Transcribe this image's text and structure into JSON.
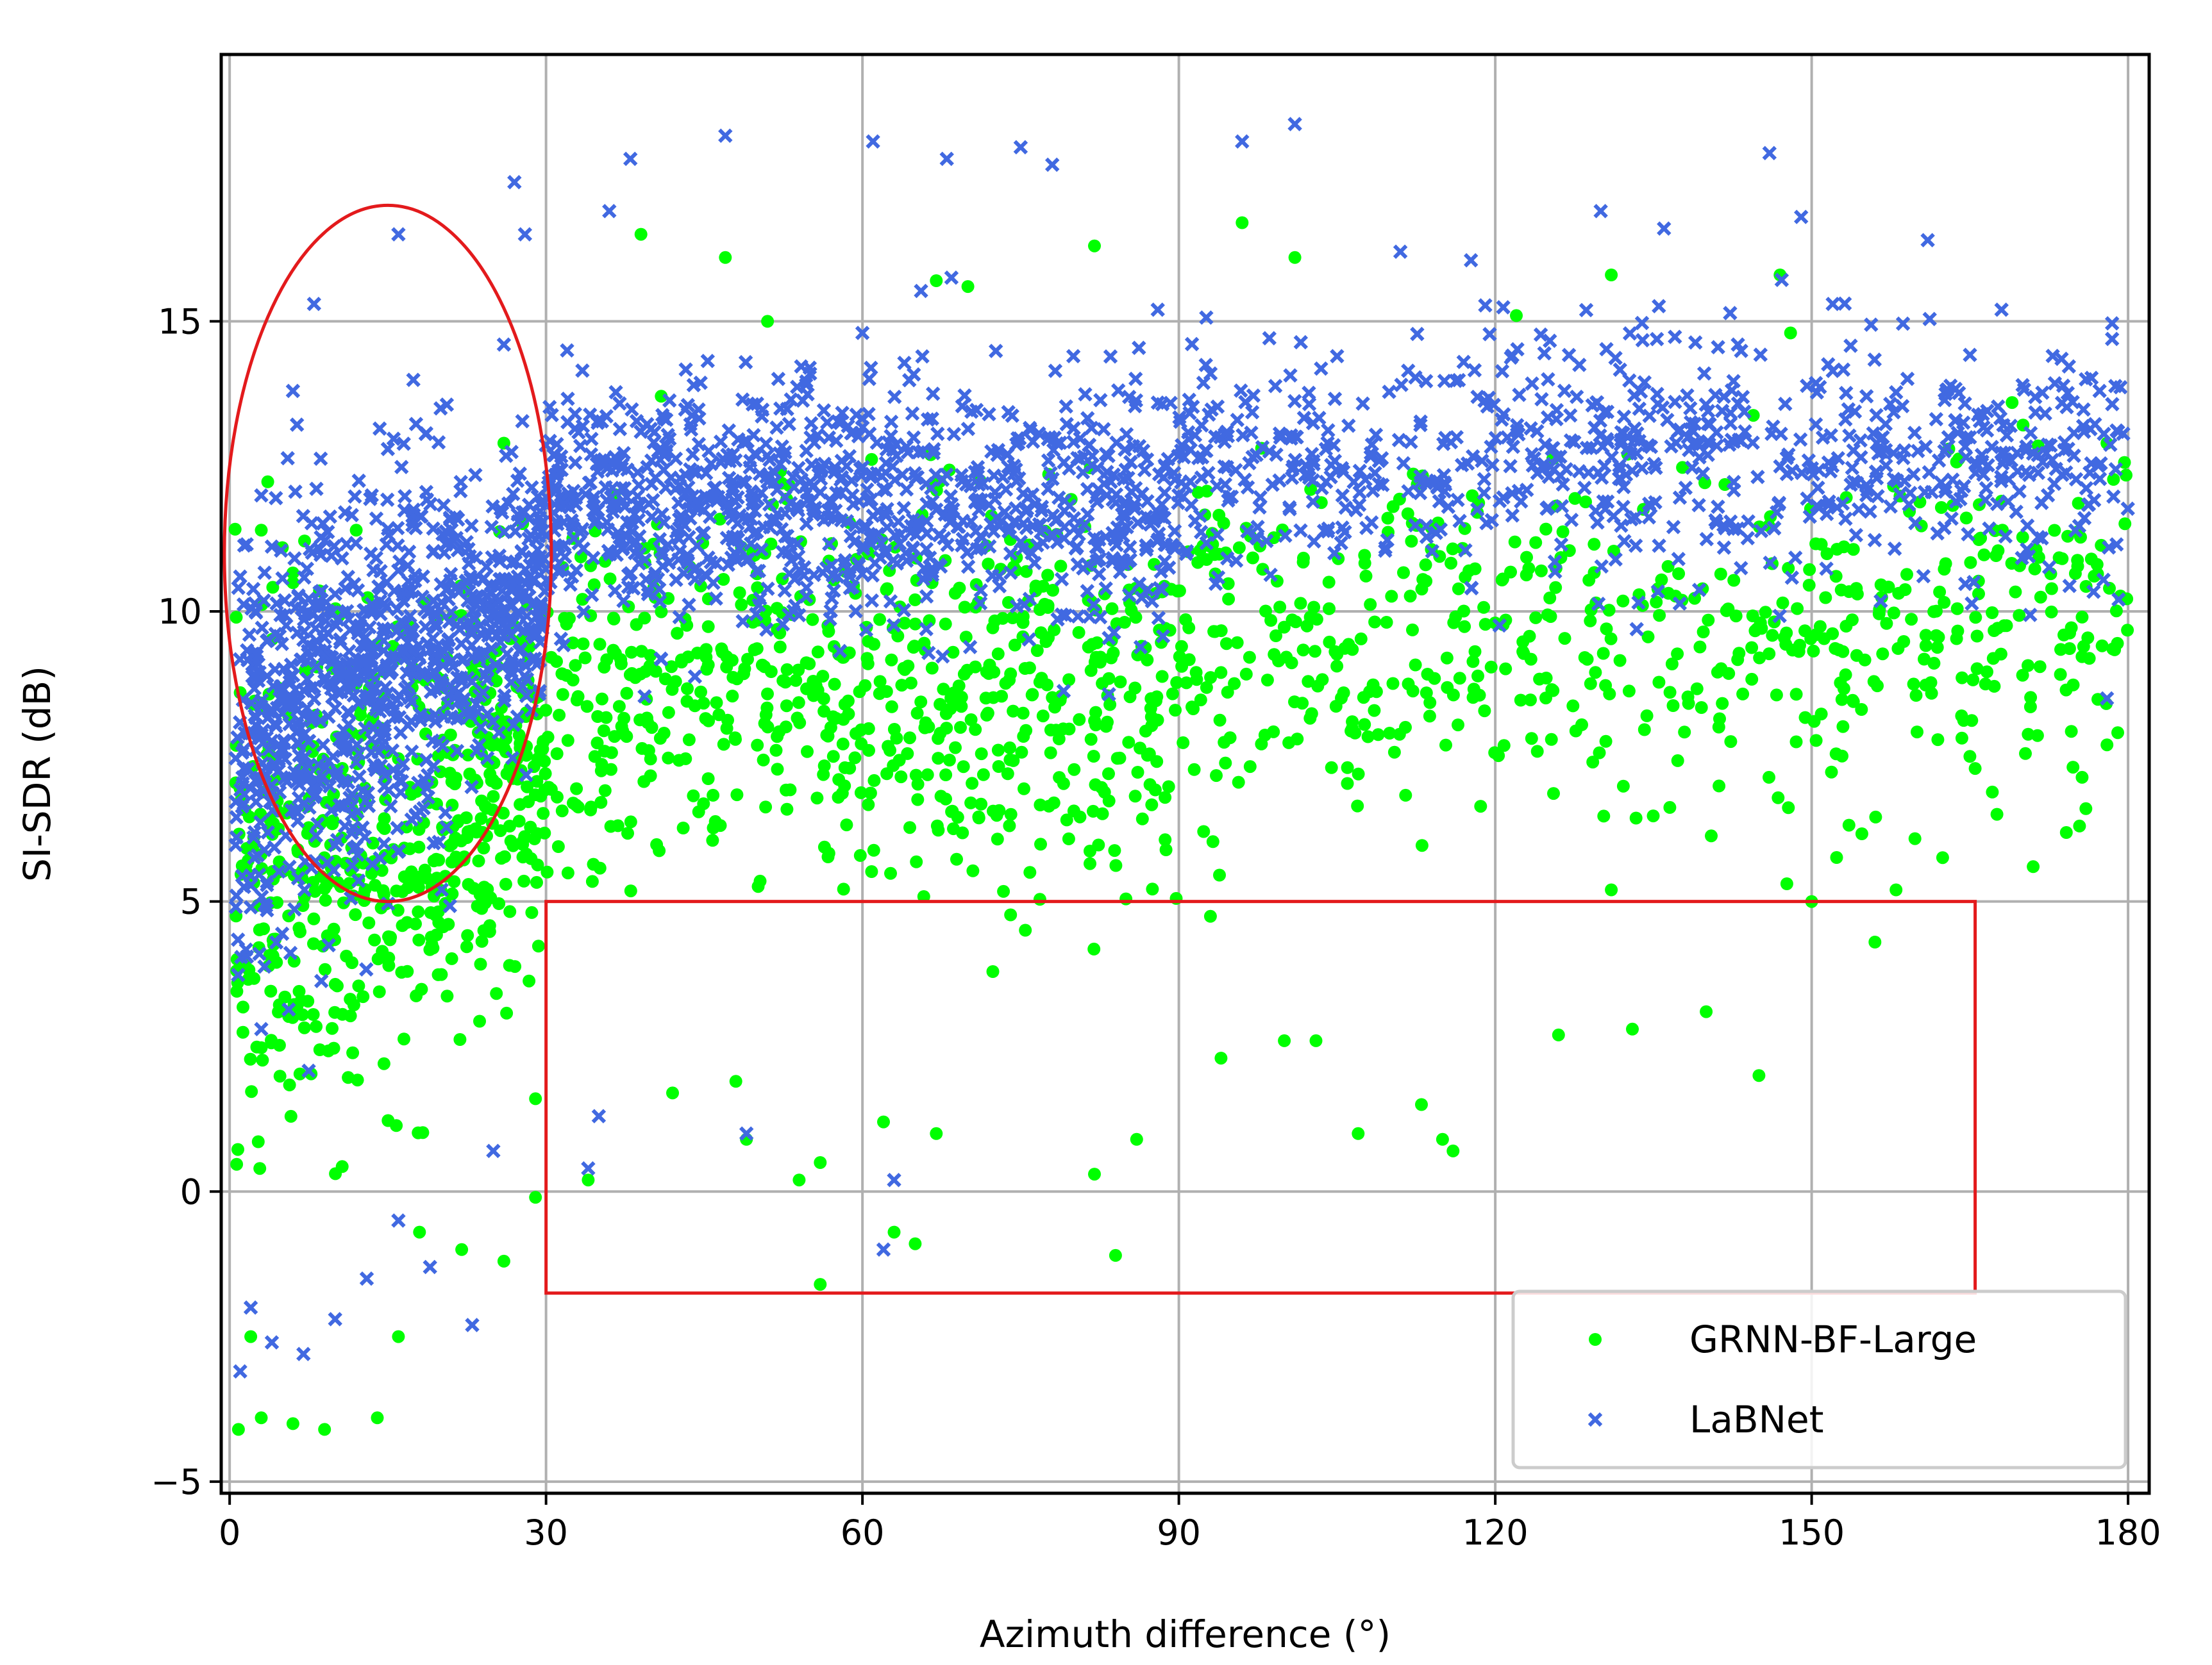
{
  "chart_data": {
    "type": "scatter",
    "title": "",
    "xlabel": "Azimuth difference (°)",
    "ylabel": "SI-SDR (dB)",
    "xlim": [
      -0.8,
      182
    ],
    "ylim": [
      -5.2,
      19.6
    ],
    "xticks": [
      0,
      30,
      60,
      90,
      120,
      150,
      180
    ],
    "xtick_labels": [
      "0",
      "30",
      "60",
      "90",
      "120",
      "150",
      "180"
    ],
    "yticks": [
      -5,
      0,
      5,
      10,
      15
    ],
    "ytick_labels": [
      "−5",
      "0",
      "5",
      "10",
      "15"
    ],
    "grid": true,
    "legend": {
      "position": "lower-right",
      "entries": [
        "GRNN-BF-Large",
        "LaBNet"
      ]
    },
    "series": [
      {
        "name": "GRNN-BF-Large",
        "color": "#00ff00",
        "marker": "circle",
        "point_count": 1800,
        "distribution": [
          {
            "x_range": [
              0.5,
              30
            ],
            "y_center": 5.5,
            "y_spread": 4.2,
            "weight": 0.32
          },
          {
            "x_range": [
              30,
              90
            ],
            "y_center": 8.5,
            "y_spread": 3.0,
            "weight": 0.36
          },
          {
            "x_range": [
              90,
              180
            ],
            "y_center": 9.5,
            "y_spread": 2.6,
            "weight": 0.32
          }
        ],
        "sample_points": [
          [
            2,
            -2.5
          ],
          [
            3,
            -3.9
          ],
          [
            6,
            -4.0
          ],
          [
            9,
            -4.1
          ],
          [
            14,
            -3.9
          ],
          [
            16,
            -2.5
          ],
          [
            18,
            -0.7
          ],
          [
            22,
            -1.0
          ],
          [
            26,
            -1.2
          ],
          [
            29,
            -0.1
          ],
          [
            29,
            1.6
          ],
          [
            34,
            0.2
          ],
          [
            42,
            1.7
          ],
          [
            48,
            1.9
          ],
          [
            49,
            0.9
          ],
          [
            54,
            0.2
          ],
          [
            56,
            0.5
          ],
          [
            56,
            -1.6
          ],
          [
            62,
            1.2
          ],
          [
            63,
            -0.7
          ],
          [
            65,
            -0.9
          ],
          [
            67,
            1.0
          ],
          [
            82,
            0.3
          ],
          [
            84,
            -1.1
          ],
          [
            86,
            0.9
          ],
          [
            94,
            2.3
          ],
          [
            100,
            2.6
          ],
          [
            103,
            2.6
          ],
          [
            107,
            1.0
          ],
          [
            113,
            1.5
          ],
          [
            115,
            0.9
          ],
          [
            116,
            0.7
          ],
          [
            126,
            2.7
          ],
          [
            131,
            5.2
          ],
          [
            133,
            2.8
          ],
          [
            140,
            3.1
          ],
          [
            145,
            2.0
          ],
          [
            150,
            5.0
          ],
          [
            156,
            4.3
          ],
          [
            158,
            5.2
          ],
          [
            165,
            7.5
          ],
          [
            170,
            8.9
          ],
          [
            171,
            5.6
          ],
          [
            178,
            7.7
          ],
          [
            176,
            6.6
          ],
          [
            178,
            12.9
          ],
          [
            169,
            13.6
          ],
          [
            168,
            11.9
          ],
          [
            163,
            12.8
          ],
          [
            147,
            15.8
          ],
          [
            131,
            15.8
          ],
          [
            122,
            15.1
          ],
          [
            101,
            16.1
          ],
          [
            96,
            16.7
          ],
          [
            82,
            16.3
          ],
          [
            70,
            15.6
          ],
          [
            67,
            15.7
          ],
          [
            47,
            16.1
          ],
          [
            51,
            15.0
          ],
          [
            39,
            16.5
          ],
          [
            26,
            12.9
          ],
          [
            12,
            11.4
          ],
          [
            5,
            11.1
          ],
          [
            3,
            11.4
          ],
          [
            1,
            8.6
          ],
          [
            148,
            14.8
          ]
        ]
      },
      {
        "name": "LaBNet",
        "color": "#4169e1",
        "marker": "x",
        "point_count": 2600,
        "distribution": [
          {
            "x_range": [
              0.5,
              30
            ],
            "y_center": 8.5,
            "y_spread": 3.4,
            "weight": 0.36
          },
          {
            "x_range": [
              30,
              90
            ],
            "y_center": 11.8,
            "y_spread": 1.9,
            "weight": 0.36
          },
          {
            "x_range": [
              90,
              180
            ],
            "y_center": 12.6,
            "y_spread": 1.9,
            "weight": 0.28
          }
        ],
        "sample_points": [
          [
            1,
            -3.1
          ],
          [
            2,
            -2.0
          ],
          [
            4,
            -2.6
          ],
          [
            7,
            -2.8
          ],
          [
            10,
            -2.2
          ],
          [
            13,
            -1.5
          ],
          [
            16,
            -0.5
          ],
          [
            19,
            -1.3
          ],
          [
            23,
            -2.3
          ],
          [
            25,
            0.7
          ],
          [
            34,
            0.4
          ],
          [
            35,
            1.3
          ],
          [
            49,
            1.0
          ],
          [
            63,
            0.2
          ],
          [
            62,
            -1.0
          ],
          [
            47,
            18.2
          ],
          [
            61,
            18.1
          ],
          [
            68,
            17.8
          ],
          [
            75,
            18.0
          ],
          [
            78,
            17.7
          ],
          [
            96,
            18.1
          ],
          [
            101,
            18.4
          ],
          [
            146,
            17.9
          ],
          [
            38,
            17.8
          ],
          [
            27,
            17.4
          ],
          [
            16,
            16.5
          ],
          [
            8,
            15.3
          ],
          [
            6,
            13.8
          ],
          [
            3,
            12.0
          ],
          [
            1,
            10.6
          ],
          [
            28,
            16.5
          ],
          [
            36,
            16.9
          ],
          [
            111,
            16.2
          ],
          [
            130,
            16.9
          ],
          [
            136,
            16.6
          ],
          [
            149,
            16.8
          ],
          [
            161,
            16.4
          ],
          [
            168,
            15.2
          ],
          [
            170,
            13.9
          ],
          [
            176,
            14.0
          ],
          [
            178,
            8.5
          ],
          [
            173,
            12.2
          ],
          [
            165,
            13.0
          ],
          [
            152,
            15.3
          ],
          [
            143,
            14.6
          ],
          [
            125,
            14.0
          ],
          [
            117,
            14.3
          ],
          [
            105,
            14.4
          ],
          [
            93,
            14.1
          ],
          [
            88,
            15.2
          ],
          [
            80,
            14.4
          ],
          [
            72,
            13.4
          ],
          [
            60,
            14.8
          ],
          [
            55,
            14.2
          ],
          [
            44,
            13.9
          ],
          [
            40,
            12.6
          ],
          [
            32,
            14.5
          ],
          [
            26,
            14.6
          ],
          [
            20,
            13.5
          ],
          [
            15,
            12.8
          ],
          [
            10,
            10.3
          ],
          [
            6,
            8.5
          ],
          [
            4,
            6.7
          ],
          [
            2,
            4.9
          ],
          [
            3,
            2.8
          ],
          [
            12,
            7.4
          ]
        ]
      }
    ],
    "annotations": [
      {
        "type": "ellipse",
        "color": "#e31a1c",
        "center": [
          15,
          11.0
        ],
        "rx": 15.5,
        "ry": 6.0
      },
      {
        "type": "rectangle",
        "color": "#e31a1c",
        "x": [
          30,
          165.5
        ],
        "y": [
          -1.75,
          5.0
        ]
      }
    ]
  }
}
